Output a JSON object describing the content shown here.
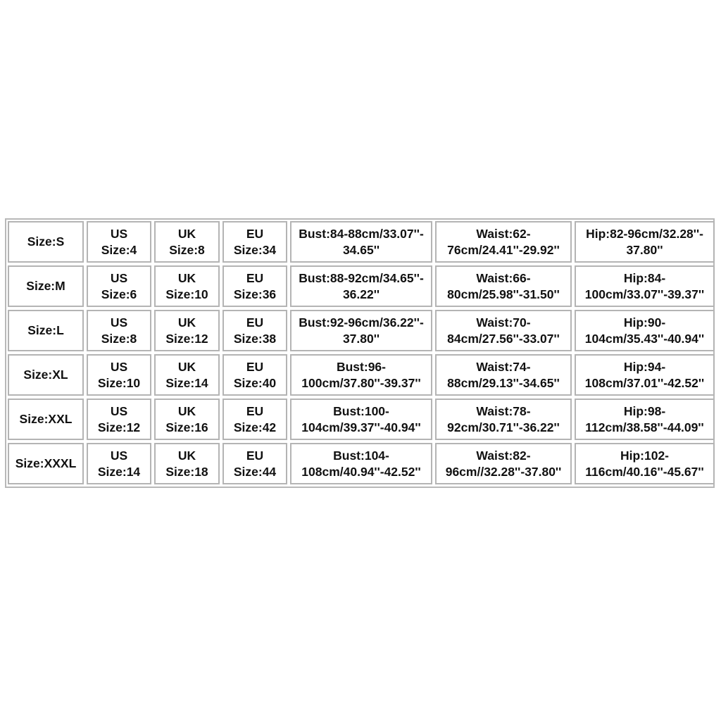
{
  "table": {
    "rows": [
      [
        [
          "Size:S"
        ],
        [
          "US",
          "Size:4"
        ],
        [
          "UK",
          "Size:8"
        ],
        [
          "EU",
          "Size:34"
        ],
        [
          "Bust:84-88cm/33.07''-",
          "34.65''"
        ],
        [
          "Waist:62-",
          "76cm/24.41''-29.92''"
        ],
        [
          "Hip:82-96cm/32.28''-",
          "37.80''"
        ]
      ],
      [
        [
          "Size:M"
        ],
        [
          "US",
          "Size:6"
        ],
        [
          "UK",
          "Size:10"
        ],
        [
          "EU",
          "Size:36"
        ],
        [
          "Bust:88-92cm/34.65''-",
          "36.22''"
        ],
        [
          "Waist:66-",
          "80cm/25.98''-31.50''"
        ],
        [
          "Hip:84-",
          "100cm/33.07''-39.37''"
        ]
      ],
      [
        [
          "Size:L"
        ],
        [
          "US",
          "Size:8"
        ],
        [
          "UK",
          "Size:12"
        ],
        [
          "EU",
          "Size:38"
        ],
        [
          "Bust:92-96cm/36.22''-",
          "37.80''"
        ],
        [
          "Waist:70-",
          "84cm/27.56''-33.07''"
        ],
        [
          "Hip:90-",
          "104cm/35.43''-40.94''"
        ]
      ],
      [
        [
          "Size:XL"
        ],
        [
          "US",
          "Size:10"
        ],
        [
          "UK",
          "Size:14"
        ],
        [
          "EU",
          "Size:40"
        ],
        [
          "Bust:96-",
          "100cm/37.80''-39.37''"
        ],
        [
          "Waist:74-",
          "88cm/29.13''-34.65''"
        ],
        [
          "Hip:94-",
          "108cm/37.01''-42.52''"
        ]
      ],
      [
        [
          "Size:XXL"
        ],
        [
          "US",
          "Size:12"
        ],
        [
          "UK",
          "Size:16"
        ],
        [
          "EU",
          "Size:42"
        ],
        [
          "Bust:100-",
          "104cm/39.37''-40.94''"
        ],
        [
          "Waist:78-",
          "92cm/30.71''-36.22''"
        ],
        [
          "Hip:98-",
          "112cm/38.58''-44.09''"
        ]
      ],
      [
        [
          "Size:XXXL"
        ],
        [
          "US",
          "Size:14"
        ],
        [
          "UK",
          "Size:18"
        ],
        [
          "EU",
          "Size:44"
        ],
        [
          "Bust:104-",
          "108cm/40.94''-42.52''"
        ],
        [
          "Waist:82-",
          "96cm//32.28''-37.80''"
        ],
        [
          "Hip:102-",
          "116cm/40.16''-45.67''"
        ]
      ]
    ]
  }
}
